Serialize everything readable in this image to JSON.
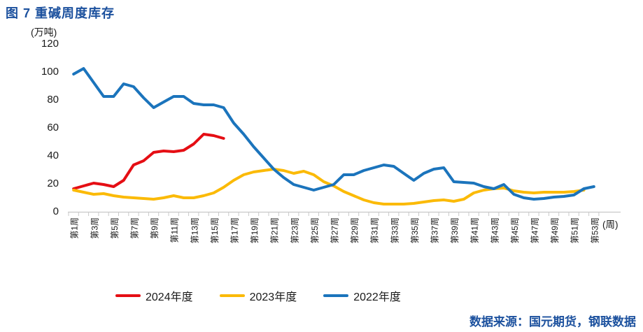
{
  "title": "图 7 重碱周度库存",
  "source_note": "数据来源：国元期货，钢联数据",
  "colors": {
    "title_blue": "#1c519e",
    "axis_gray": "#c9c9c9",
    "text_black": "#1a1a1a"
  },
  "chart_data": {
    "type": "line",
    "title": "图 7 重碱周度库存",
    "unit_label": "(万吨)",
    "xlabel": "(周)",
    "ylim": [
      0,
      120
    ],
    "yticks": [
      0,
      20,
      40,
      60,
      80,
      100,
      120
    ],
    "x_weeks_total": 53,
    "x_tick_labels": [
      "第1周",
      "第3周",
      "第5周",
      "第7周",
      "第9周",
      "第11周",
      "第13周",
      "第15周",
      "第17周",
      "第19周",
      "第21周",
      "第23周",
      "第25周",
      "第27周",
      "第29周",
      "第31周",
      "第33周",
      "第35周",
      "第37周",
      "第39周",
      "第41周",
      "第43周",
      "第45周",
      "第47周",
      "第49周",
      "第51周",
      "第53周"
    ],
    "grid": false,
    "legend_position": "bottom",
    "series": [
      {
        "name": "2024年度",
        "color": "#e50e14",
        "start_week": 1,
        "values": [
          16,
          18,
          20,
          19,
          17.5,
          22,
          33,
          36,
          42,
          43,
          42.5,
          43.5,
          48,
          55,
          54,
          52
        ]
      },
      {
        "name": "2023年度",
        "color": "#fbba07",
        "start_week": 1,
        "values": [
          15,
          13.5,
          12,
          12.5,
          11,
          10,
          9.5,
          9,
          8.5,
          9.5,
          11,
          9.5,
          9.5,
          11,
          13,
          17,
          22,
          26,
          28,
          29,
          30,
          29,
          27,
          28.5,
          26,
          21,
          18,
          14,
          11,
          8,
          6,
          5,
          5,
          5,
          5.5,
          6.5,
          7.5,
          8,
          7,
          8.5,
          13,
          15,
          16,
          16.5,
          14.5,
          13.5,
          13,
          13.5,
          13.5,
          13.5,
          14,
          15
        ]
      },
      {
        "name": "2022年度",
        "color": "#1b74bc",
        "start_week": 1,
        "values": [
          98,
          102,
          92,
          82,
          82,
          91,
          89,
          81,
          74,
          78,
          82,
          82,
          77,
          76,
          76,
          74,
          63,
          55,
          46,
          38,
          30,
          24,
          19,
          17,
          15,
          17,
          19,
          26,
          26,
          29,
          31,
          33,
          32,
          27,
          22,
          27,
          30,
          31,
          21,
          20.5,
          20,
          17.5,
          16,
          19,
          12,
          9.5,
          8.5,
          9,
          10,
          10.5,
          11.5,
          16,
          17.5
        ]
      }
    ]
  }
}
